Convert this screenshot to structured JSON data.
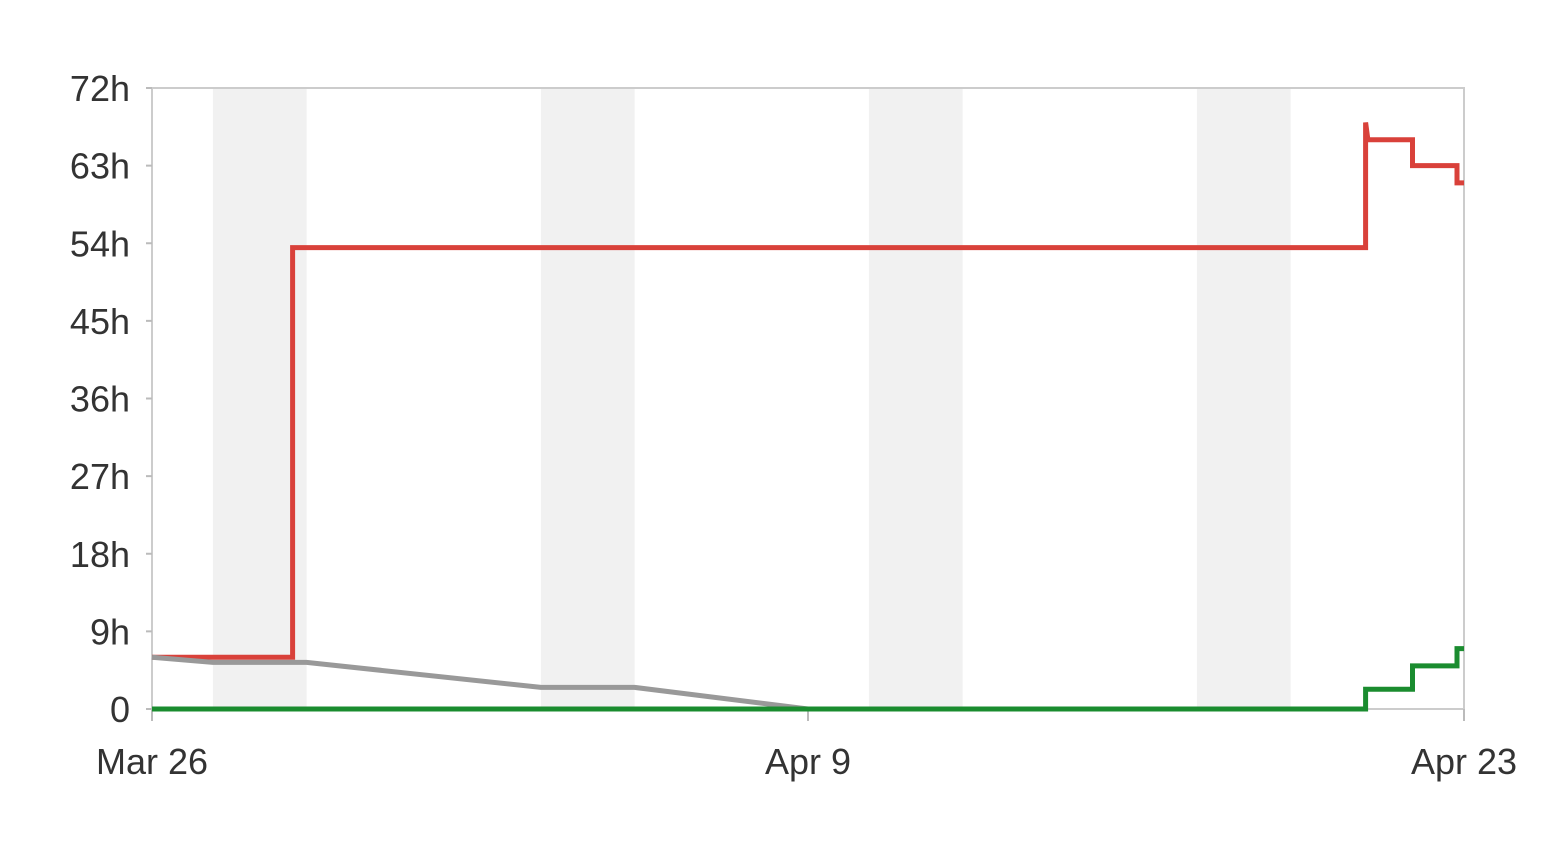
{
  "chart_data": {
    "type": "line",
    "y_ticks": [
      "0",
      "9h",
      "18h",
      "27h",
      "36h",
      "45h",
      "54h",
      "63h",
      "72h"
    ],
    "y_tick_values": [
      0,
      9,
      18,
      27,
      36,
      45,
      54,
      63,
      72
    ],
    "ylim": [
      0,
      72
    ],
    "x_ticks": [
      {
        "label": "Mar 26",
        "day": 0
      },
      {
        "label": "Apr 9",
        "day": 14
      },
      {
        "label": "Apr 23",
        "day": 28
      }
    ],
    "xlim_days": [
      0,
      28
    ],
    "weekend_bands": [
      [
        1.3,
        3.3
      ],
      [
        8.3,
        10.3
      ],
      [
        15.3,
        17.3
      ],
      [
        22.3,
        24.3
      ]
    ],
    "grid": false,
    "legend": "none",
    "series": [
      {
        "color": "#d9413a",
        "step": true,
        "points": [
          [
            0,
            6
          ],
          [
            3,
            6
          ],
          [
            3,
            53.5
          ],
          [
            25.9,
            53.5
          ],
          [
            25.9,
            68
          ],
          [
            25.95,
            66
          ],
          [
            26.9,
            66
          ],
          [
            26.9,
            63
          ],
          [
            27.85,
            63
          ],
          [
            27.85,
            61
          ],
          [
            28,
            61
          ]
        ]
      },
      {
        "color": "#999999",
        "step": false,
        "points": [
          [
            0,
            6
          ],
          [
            1.3,
            5.4
          ],
          [
            3.3,
            5.4
          ],
          [
            8.3,
            2.5
          ],
          [
            10.3,
            2.5
          ],
          [
            14,
            0
          ]
        ]
      },
      {
        "color": "#1a8c2f",
        "step": true,
        "points": [
          [
            0,
            0
          ],
          [
            25.9,
            0
          ],
          [
            25.9,
            2.3
          ],
          [
            26.9,
            2.3
          ],
          [
            26.9,
            5
          ],
          [
            27.85,
            5
          ],
          [
            27.85,
            7
          ],
          [
            28,
            7
          ]
        ]
      }
    ]
  }
}
